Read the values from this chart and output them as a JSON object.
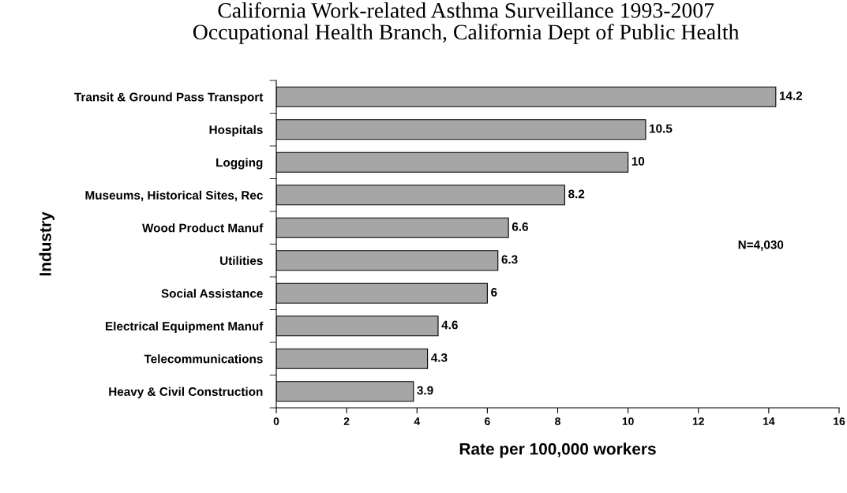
{
  "chart_data": {
    "type": "bar",
    "orientation": "horizontal",
    "title": "California Work-related Asthma Surveillance 1993-2007\nOccupational Health Branch, California Dept of Public Health",
    "xlabel": "Rate per 100,000 workers",
    "ylabel": "Industry",
    "categories": [
      "Transit & Ground Pass Transport",
      "Hospitals",
      "Logging",
      "Museums, Historical Sites, Rec",
      "Wood Product Manuf",
      "Utilities",
      "Social Assistance",
      "Electrical Equipment Manuf",
      "Telecommunications",
      "Heavy & Civil Construction"
    ],
    "values": [
      14.2,
      10.5,
      10,
      8.2,
      6.6,
      6.3,
      6,
      4.6,
      4.3,
      3.9
    ],
    "color": "#a6a6a6",
    "xlim": [
      0,
      16
    ],
    "xticks": [
      0,
      2,
      4,
      6,
      8,
      10,
      12,
      14,
      16
    ],
    "data_labels": true,
    "grid": false,
    "legend": false,
    "annotations": [
      "N=4,030"
    ]
  }
}
